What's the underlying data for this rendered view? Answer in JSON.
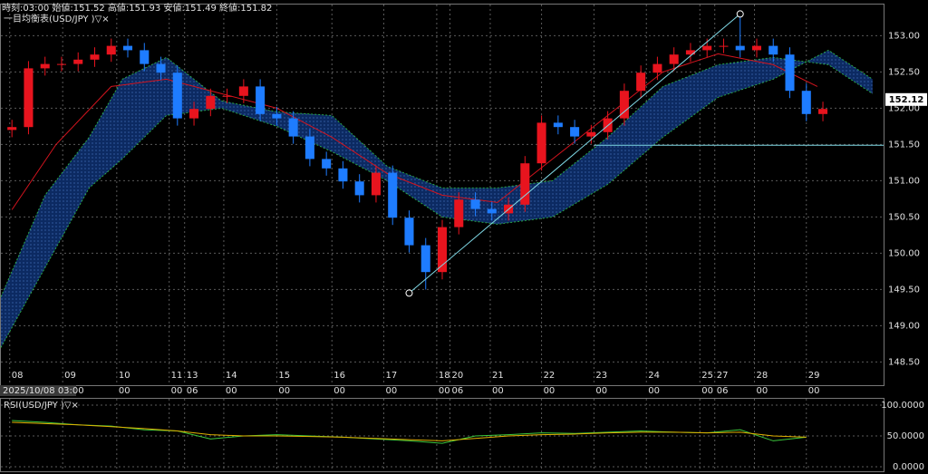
{
  "chart_data": [
    {
      "type": "candlestick",
      "info": "時刻:03:00 始値:151.52 高値:151.93 安値:151.49 終値:151.82",
      "title": "一目均衡表(USD/JPY )▽×",
      "cursor_date": "2025/10/08 03:00",
      "x": [
        2,
        5,
        8,
        11,
        14,
        17,
        20,
        23,
        26,
        29,
        32,
        35,
        38,
        41,
        44,
        47,
        50,
        53,
        56,
        59,
        62,
        65,
        68,
        71,
        74,
        77,
        80,
        83,
        86,
        89,
        92,
        95,
        98,
        101,
        104,
        107,
        110,
        113,
        116,
        119,
        122,
        125,
        128,
        131,
        134,
        137,
        140,
        143,
        146,
        149
      ],
      "open": [
        151.7,
        151.74,
        152.55,
        152.61,
        152.61,
        152.67,
        152.74,
        152.86,
        152.8,
        152.61,
        152.49,
        151.86,
        151.99,
        152.17,
        152.17,
        152.3,
        151.92,
        151.86,
        151.61,
        151.3,
        151.17,
        150.99,
        150.8,
        151.11,
        150.49,
        150.11,
        149.74,
        150.36,
        150.74,
        150.61,
        150.55,
        150.67,
        151.24,
        151.8,
        151.74,
        151.61,
        151.67,
        151.86,
        152.24,
        152.49,
        152.61,
        152.74,
        152.8,
        152.86,
        152.86,
        152.8,
        152.86,
        152.74,
        152.24,
        151.92
      ],
      "high": [
        151.84,
        152.65,
        152.71,
        152.71,
        152.77,
        152.84,
        152.96,
        152.96,
        152.9,
        152.71,
        152.59,
        152.09,
        152.27,
        152.27,
        152.4,
        152.4,
        152.02,
        151.96,
        151.71,
        151.4,
        151.27,
        151.09,
        151.21,
        151.21,
        150.59,
        150.21,
        150.46,
        150.84,
        150.84,
        150.71,
        150.77,
        151.34,
        151.9,
        151.9,
        151.84,
        151.77,
        151.96,
        152.34,
        152.59,
        152.71,
        152.84,
        152.9,
        152.96,
        152.96,
        153.3,
        152.96,
        152.96,
        152.84,
        152.34,
        152.09
      ],
      "low": [
        151.6,
        151.64,
        152.45,
        152.51,
        152.51,
        152.57,
        152.64,
        152.7,
        152.51,
        152.39,
        151.76,
        151.76,
        151.89,
        152.07,
        152.07,
        151.82,
        151.76,
        151.51,
        151.2,
        151.07,
        150.89,
        150.7,
        150.7,
        150.39,
        150.01,
        149.5,
        149.64,
        150.26,
        150.51,
        150.45,
        150.45,
        150.57,
        151.14,
        151.64,
        151.51,
        151.51,
        151.57,
        151.76,
        152.14,
        152.39,
        152.51,
        152.64,
        152.7,
        152.76,
        152.7,
        152.7,
        152.64,
        152.14,
        151.82,
        151.82
      ],
      "close": [
        151.74,
        152.55,
        152.61,
        152.61,
        152.67,
        152.74,
        152.86,
        152.8,
        152.61,
        152.49,
        151.86,
        151.99,
        152.17,
        152.17,
        152.3,
        151.92,
        151.86,
        151.61,
        151.3,
        151.17,
        150.99,
        150.8,
        151.11,
        150.49,
        150.11,
        149.74,
        150.36,
        150.74,
        150.61,
        150.55,
        150.67,
        151.24,
        151.8,
        151.74,
        151.61,
        151.67,
        151.86,
        152.24,
        152.49,
        152.61,
        152.74,
        152.8,
        152.86,
        152.86,
        152.8,
        152.86,
        152.74,
        152.24,
        151.92,
        151.99
      ],
      "up_color": "#e8141e",
      "down_color": "#1e7cff",
      "cloud": {
        "x": [
          0,
          8,
          16,
          22,
          30,
          40,
          50,
          60,
          70,
          80,
          90,
          100,
          110,
          120,
          130,
          140,
          150,
          158
        ],
        "span_a": [
          149.4,
          150.8,
          151.6,
          152.4,
          152.7,
          152.1,
          151.95,
          151.9,
          151.2,
          150.9,
          150.9,
          151.0,
          151.6,
          152.3,
          152.6,
          152.7,
          152.6,
          152.2
        ],
        "span_b": [
          148.7,
          149.8,
          150.9,
          151.3,
          151.9,
          152.0,
          151.75,
          151.4,
          151.0,
          150.5,
          150.4,
          150.5,
          150.95,
          151.6,
          152.15,
          152.4,
          152.8,
          152.4
        ],
        "color": "#0c2a62",
        "edge_color": "#2aa84a"
      },
      "lines": [
        {
          "color": "#d4141e",
          "x": [
            2,
            10,
            20,
            30,
            40,
            50,
            60,
            70,
            80,
            90,
            100,
            110,
            120,
            130,
            140,
            148
          ],
          "values": [
            150.6,
            151.5,
            152.3,
            152.4,
            152.2,
            152.0,
            151.6,
            151.1,
            150.8,
            150.7,
            151.3,
            151.9,
            152.5,
            152.75,
            152.6,
            152.3
          ]
        }
      ],
      "trendline": {
        "x": [
          74,
          134
        ],
        "y": [
          149.45,
          153.3
        ],
        "color": "#7fd9e6"
      },
      "hline": {
        "x": [
          107.5,
          160
        ],
        "y": 151.49,
        "color": "#7fd9e6"
      },
      "last_price": 152.12,
      "xlim": [
        0,
        160
      ],
      "ylim": [
        148.18,
        153.43
      ],
      "xticks": [
        {
          "value": 1.6,
          "label": "08"
        },
        {
          "value": 11.2,
          "label": "09"
        },
        {
          "value": 21,
          "label": "10"
        },
        {
          "value": 30.5,
          "label": "11"
        },
        {
          "value": 33.3,
          "label": "13"
        },
        {
          "value": 40.4,
          "label": "14"
        },
        {
          "value": 50,
          "label": "15"
        },
        {
          "value": 60,
          "label": "16"
        },
        {
          "value": 69.4,
          "label": "17"
        },
        {
          "value": 79,
          "label": "18"
        },
        {
          "value": 81.4,
          "label": "20"
        },
        {
          "value": 88.7,
          "label": "21"
        },
        {
          "value": 98,
          "label": "22"
        },
        {
          "value": 107.5,
          "label": "23"
        },
        {
          "value": 117,
          "label": "24"
        },
        {
          "value": 126.7,
          "label": "25"
        },
        {
          "value": 129.4,
          "label": "27"
        },
        {
          "value": 136.6,
          "label": "28"
        },
        {
          "value": 146,
          "label": "29"
        }
      ],
      "xtick_times": [
        null,
        "00",
        "00",
        "00",
        "06",
        "00",
        "00",
        "00",
        "00",
        "00",
        "06",
        "00",
        "00",
        "00",
        "00",
        "00",
        "06",
        "00",
        "00"
      ],
      "yticks": [
        {
          "value": 148.5,
          "label": "148.50"
        },
        {
          "value": 149,
          "label": "149.00"
        },
        {
          "value": 149.5,
          "label": "149.50"
        },
        {
          "value": 150,
          "label": "150.00"
        },
        {
          "value": 150.5,
          "label": "150.50"
        },
        {
          "value": 151,
          "label": "151.00"
        },
        {
          "value": 151.5,
          "label": "151.50"
        },
        {
          "value": 152,
          "label": "152.00"
        },
        {
          "value": 152.5,
          "label": "152.50"
        },
        {
          "value": 153,
          "label": "153.00"
        }
      ],
      "grid": true
    },
    {
      "type": "line",
      "title": "RSI(USD/JPY )▽×",
      "x": [
        2,
        8,
        14,
        20,
        26,
        32,
        38,
        44,
        50,
        56,
        62,
        68,
        74,
        80,
        86,
        92,
        98,
        104,
        110,
        116,
        122,
        128,
        134,
        140,
        146
      ],
      "series": [
        {
          "color": "#3cc83c",
          "values": [
            75,
            72,
            68,
            66,
            60,
            58,
            45,
            50,
            52,
            50,
            48,
            45,
            42,
            38,
            50,
            52,
            55,
            54,
            56,
            58,
            56,
            55,
            60,
            42,
            48
          ]
        },
        {
          "color": "#e0b000",
          "values": [
            72,
            70,
            68,
            65,
            62,
            58,
            52,
            50,
            50,
            49,
            48,
            46,
            44,
            42,
            46,
            50,
            52,
            53,
            55,
            56,
            56,
            55,
            56,
            50,
            48
          ]
        }
      ],
      "xlim": [
        0,
        160
      ],
      "ylim": [
        -7.4,
        110.3
      ],
      "yticks": [
        {
          "value": 0,
          "label": "0.0000"
        },
        {
          "value": 50,
          "label": "50.0000"
        },
        {
          "value": 100,
          "label": "100.0000"
        }
      ],
      "grid": true
    }
  ]
}
